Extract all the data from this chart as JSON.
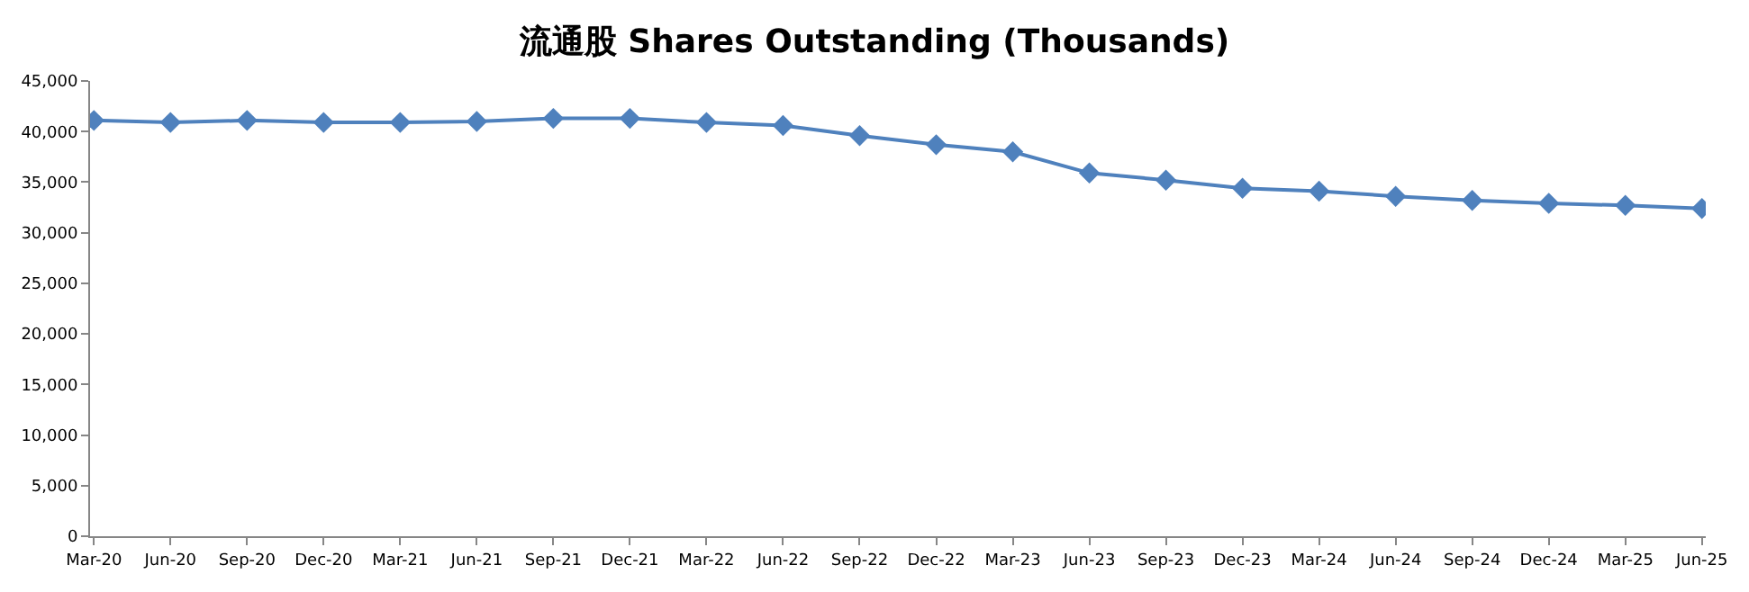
{
  "chart_data": {
    "type": "line",
    "title": "流通股 Shares Outstanding (Thousands)",
    "categories": [
      "Mar-20",
      "Jun-20",
      "Sep-20",
      "Dec-20",
      "Mar-21",
      "Jun-21",
      "Sep-21",
      "Dec-21",
      "Mar-22",
      "Jun-22",
      "Sep-22",
      "Dec-22",
      "Mar-23",
      "Jun-23",
      "Sep-23",
      "Dec-23",
      "Mar-24",
      "Jun-24",
      "Sep-24",
      "Dec-24",
      "Mar-25",
      "Jun-25"
    ],
    "series": [
      {
        "color": "#4f81bd",
        "values": [
          41100,
          40900,
          41100,
          40900,
          40900,
          41000,
          41300,
          41300,
          40900,
          40600,
          39600,
          38700,
          38000,
          35900,
          35200,
          34400,
          34100,
          33600,
          33200,
          32900,
          32700,
          32400
        ]
      }
    ],
    "ylim": [
      0,
      45000
    ],
    "yticks": [
      {
        "value": 0,
        "label": "0"
      },
      {
        "value": 5000,
        "label": "5,000"
      },
      {
        "value": 10000,
        "label": "10,000"
      },
      {
        "value": 15000,
        "label": "15,000"
      },
      {
        "value": 20000,
        "label": "20,000"
      },
      {
        "value": 25000,
        "label": "25,000"
      },
      {
        "value": 30000,
        "label": "30,000"
      },
      {
        "value": 35000,
        "label": "35,000"
      },
      {
        "value": 40000,
        "label": "40,000"
      },
      {
        "value": 45000,
        "label": "45,000"
      }
    ],
    "legend": false,
    "marker": "diamond",
    "line_style": "solid"
  }
}
